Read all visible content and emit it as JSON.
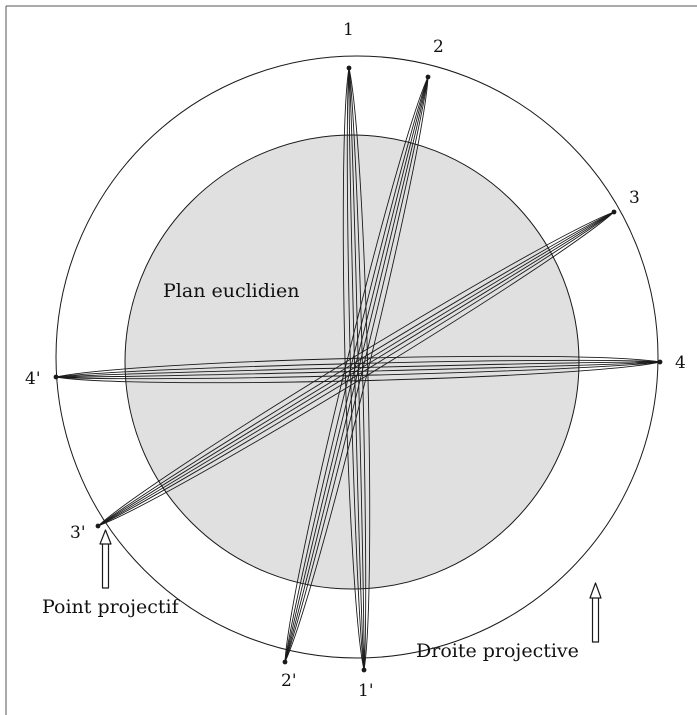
{
  "diagram": {
    "region_label": "Plan euclidien",
    "point_caption": "Point projectif",
    "line_caption": "Droite projective",
    "endpoints": [
      {
        "label": "1",
        "pair": "1'"
      },
      {
        "label": "2",
        "pair": "2'"
      },
      {
        "label": "3",
        "pair": "3'"
      },
      {
        "label": "4",
        "pair": "4'"
      }
    ],
    "colors": {
      "disk_fill": "#e0e0e0",
      "stroke": "#1a1a1a",
      "frame": "#555555",
      "background": "#ffffff"
    }
  }
}
